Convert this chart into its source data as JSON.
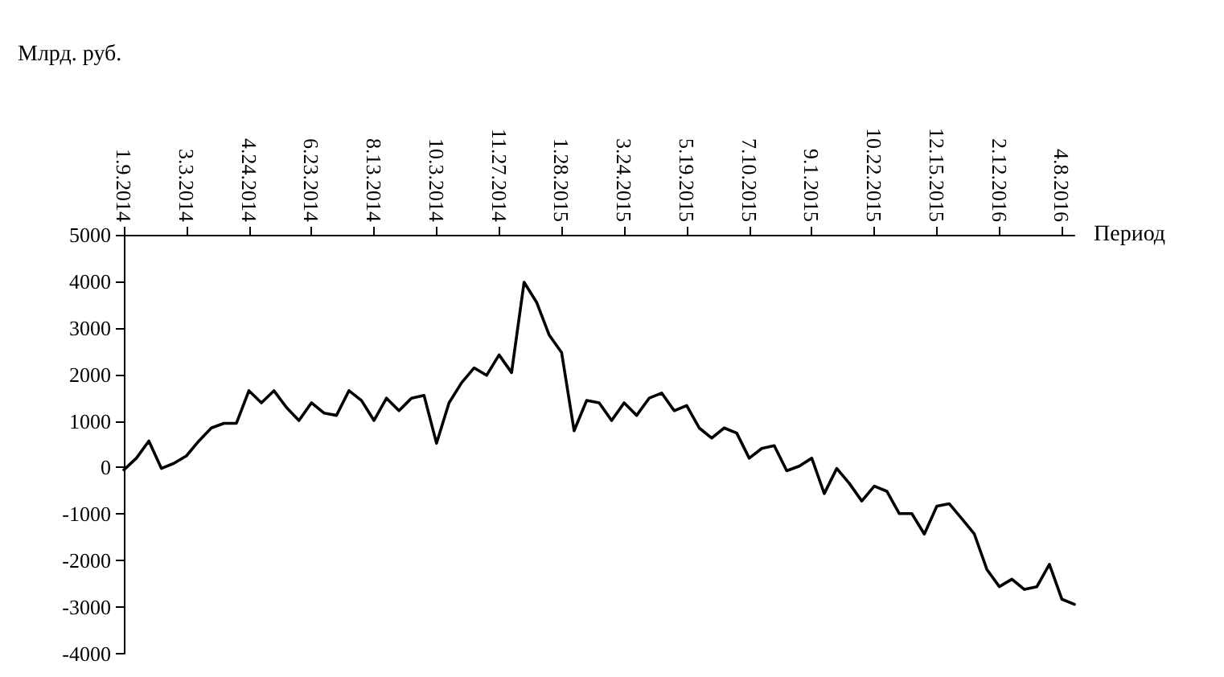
{
  "chart_data": {
    "type": "line",
    "xlabel": "Период",
    "ylabel": "Млрд. руб.",
    "categories": [
      "1.9.2014",
      null,
      null,
      null,
      null,
      "3.3.2014",
      null,
      null,
      null,
      null,
      "4.24.2014",
      null,
      null,
      null,
      null,
      "6.23.2014",
      null,
      null,
      null,
      null,
      "8.13.2014",
      null,
      null,
      null,
      null,
      "10.3.2014",
      null,
      null,
      null,
      null,
      "11.27.2014",
      null,
      null,
      null,
      null,
      "1.28.2015",
      null,
      null,
      null,
      null,
      "3.24.2015",
      null,
      null,
      null,
      null,
      "5.19.2015",
      null,
      null,
      null,
      null,
      "7.10.2015",
      null,
      null,
      null,
      null,
      "9.1.2015",
      null,
      null,
      null,
      null,
      "10.22.2015",
      null,
      null,
      null,
      null,
      "12.15.2015",
      null,
      null,
      null,
      null,
      "2.12.2016",
      null,
      null,
      null,
      null,
      "4.8.2016",
      null
    ],
    "series": [
      {
        "color": "#000000",
        "values": [
          -50,
          200,
          570,
          -20,
          90,
          250,
          570,
          850,
          950,
          950,
          1650,
          1390,
          1650,
          1290,
          1010,
          1390,
          1170,
          1120,
          1650,
          1440,
          1010,
          1490,
          1220,
          1490,
          1550,
          520,
          1390,
          1820,
          2140,
          1980,
          2420,
          2040,
          3980,
          3550,
          2850,
          2470,
          790,
          1440,
          1390,
          1010,
          1390,
          1120,
          1490,
          1600,
          1220,
          1330,
          850,
          630,
          850,
          740,
          200,
          410,
          470,
          -70,
          30,
          200,
          -560,
          -20,
          -340,
          -720,
          -400,
          -510,
          -990,
          -990,
          -1430,
          -830,
          -780,
          -1100,
          -1430,
          -2190,
          -2560,
          -2400,
          -2620,
          -2560,
          -2080,
          -2830,
          -2940
        ]
      }
    ],
    "ylim": [
      -4000,
      5000
    ],
    "yticks": [
      -4000,
      -3000,
      -2000,
      -1000,
      0,
      1000,
      2000,
      3000,
      4000,
      5000
    ],
    "marker": "none",
    "line_style": "solid"
  }
}
